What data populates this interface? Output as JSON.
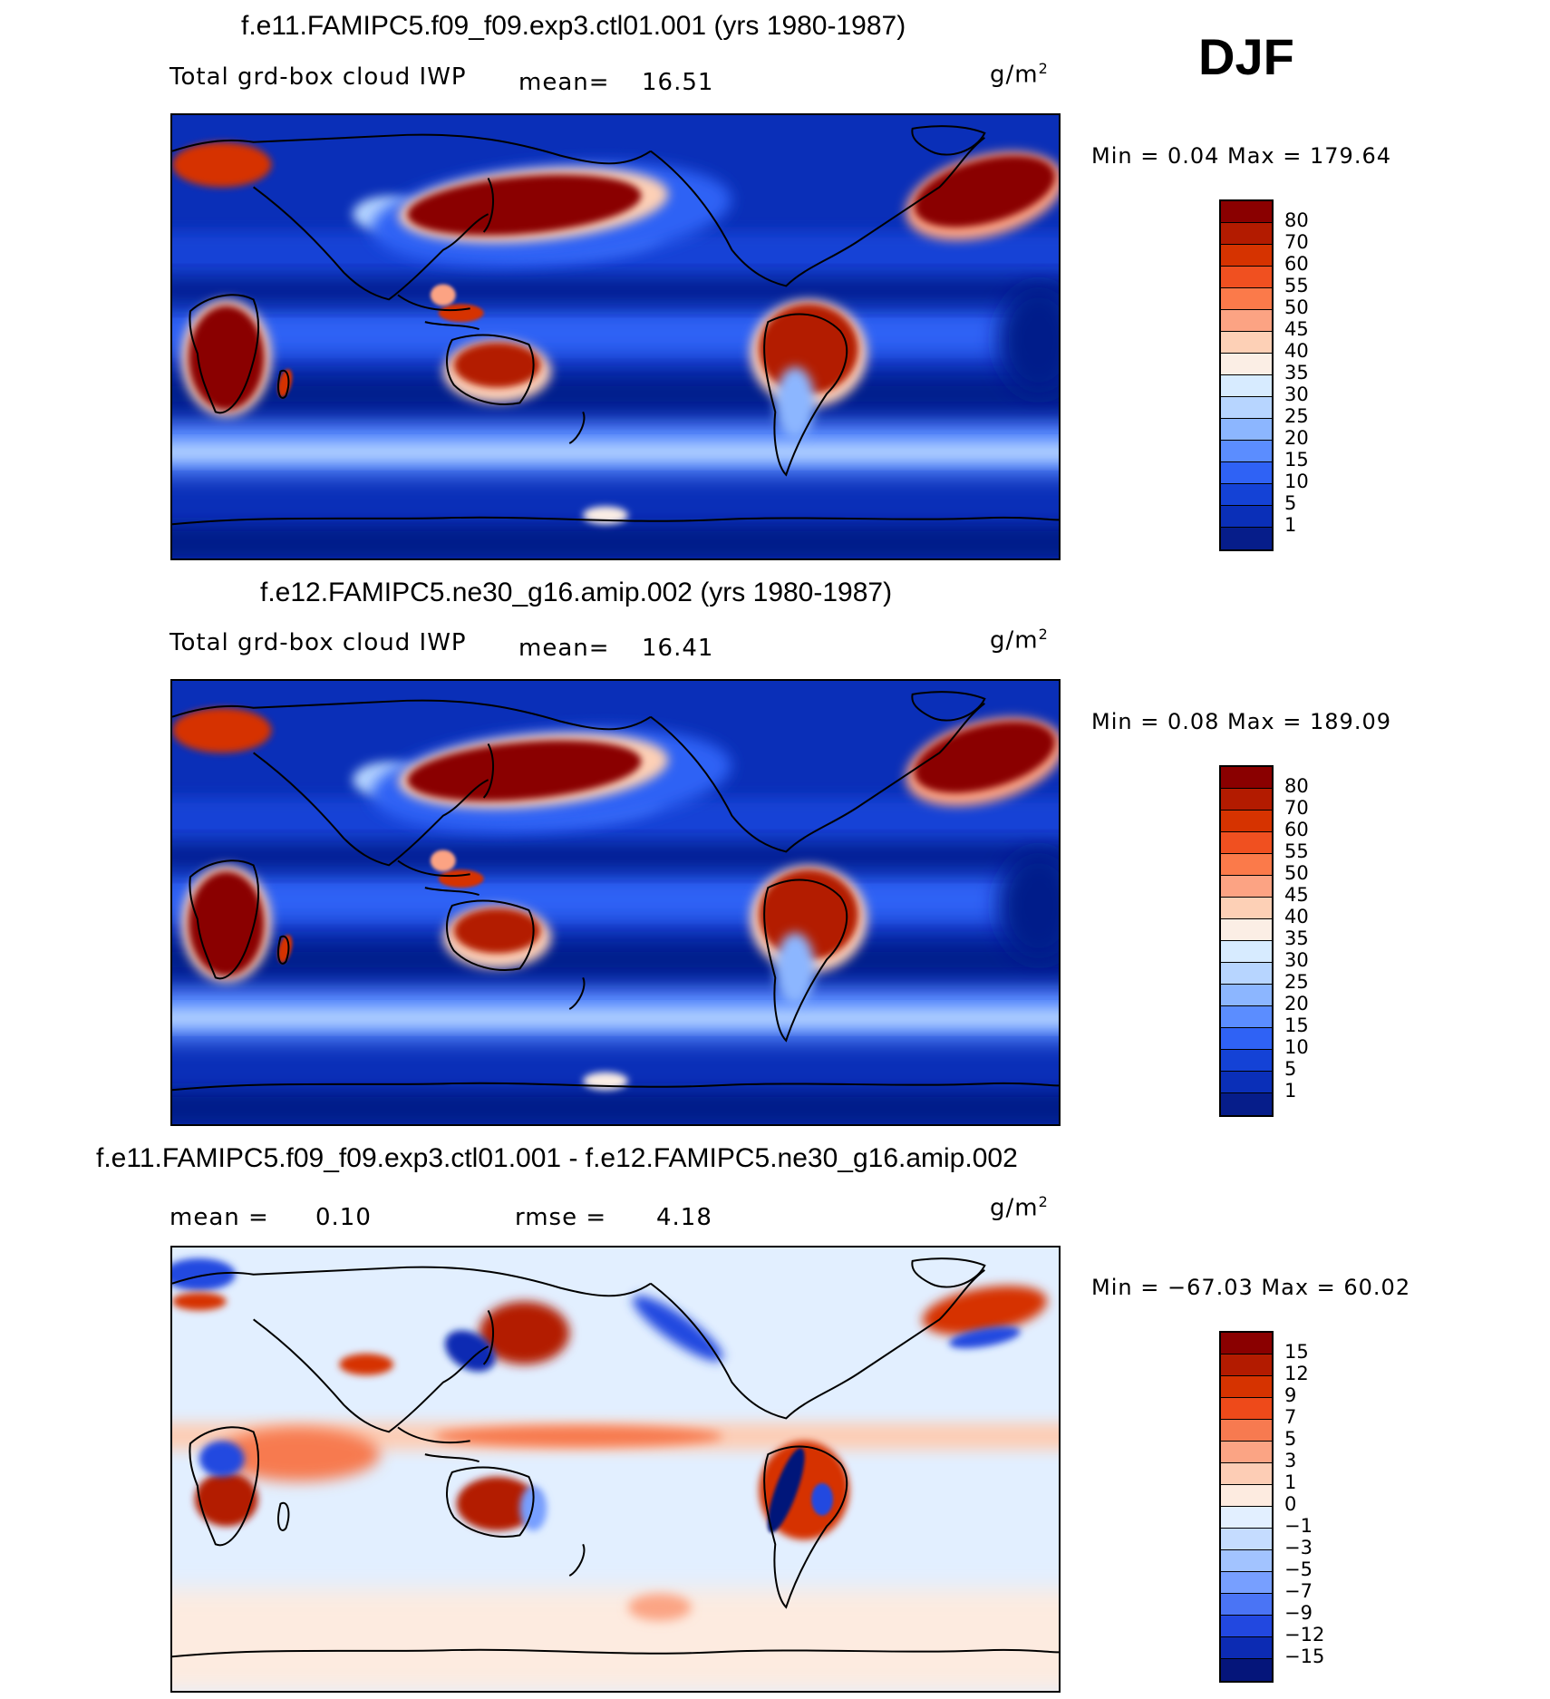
{
  "season": "DJF",
  "panels": [
    {
      "id": "top",
      "title": "f.e11.FAMIPC5.f09_f09.exp3.ctl01.001 (yrs 1980-1987)",
      "variable": "Total grd-box cloud IWP",
      "stat_label": "mean=",
      "stat_value": "16.51",
      "units": "g/m",
      "units_exp": "2",
      "minmax": "Min =    0.04 Max =  179.64",
      "map_type": "field",
      "colorbar": {
        "labels": [
          "80",
          "70",
          "60",
          "55",
          "50",
          "45",
          "40",
          "35",
          "30",
          "25",
          "20",
          "15",
          "10",
          "5",
          "1"
        ],
        "colors": [
          "#8a0000",
          "#b31b00",
          "#d63300",
          "#f05020",
          "#fb7a4a",
          "#fca383",
          "#fdd0b6",
          "#fbeee5",
          "#d7ebff",
          "#b7d5ff",
          "#8cb6ff",
          "#5b8dff",
          "#2f62f5",
          "#1442d6",
          "#0a2fb8",
          "#061d8a"
        ]
      }
    },
    {
      "id": "middle",
      "title": "f.e12.FAMIPC5.ne30_g16.amip.002 (yrs 1980-1987)",
      "variable": "Total grd-box cloud IWP",
      "stat_label": "mean=",
      "stat_value": "16.41",
      "units": "g/m",
      "units_exp": "2",
      "minmax": "Min =    0.08 Max =  189.09",
      "map_type": "field",
      "colorbar": {
        "labels": [
          "80",
          "70",
          "60",
          "55",
          "50",
          "45",
          "40",
          "35",
          "30",
          "25",
          "20",
          "15",
          "10",
          "5",
          "1"
        ],
        "colors": [
          "#8a0000",
          "#b31b00",
          "#d63300",
          "#f05020",
          "#fb7a4a",
          "#fca383",
          "#fdd0b6",
          "#fbeee5",
          "#d7ebff",
          "#b7d5ff",
          "#8cb6ff",
          "#5b8dff",
          "#2f62f5",
          "#1442d6",
          "#0a2fb8",
          "#061d8a"
        ]
      }
    },
    {
      "id": "diff",
      "title": "f.e11.FAMIPC5.f09_f09.exp3.ctl01.001 - f.e12.FAMIPC5.ne30_g16.amip.002",
      "mean_label": "mean =",
      "mean_value": "0.10",
      "rmse_label": "rmse =",
      "rmse_value": "4.18",
      "units": "g/m",
      "units_exp": "2",
      "minmax": "Min = −67.03 Max =   60.02",
      "map_type": "diff",
      "colorbar": {
        "labels": [
          "15",
          "12",
          "9",
          "7",
          "5",
          "3",
          "1",
          "0",
          "−1",
          "−3",
          "−5",
          "−7",
          "−9",
          "−12",
          "−15"
        ],
        "colors": [
          "#8a0000",
          "#b31b00",
          "#d63300",
          "#ee4a1a",
          "#f77a50",
          "#fba484",
          "#fdcdb5",
          "#fdebe0",
          "#e2efff",
          "#c5dcff",
          "#a2c3ff",
          "#779fff",
          "#4a74f5",
          "#2248e0",
          "#0c2bb3",
          "#05157a"
        ]
      }
    }
  ]
}
